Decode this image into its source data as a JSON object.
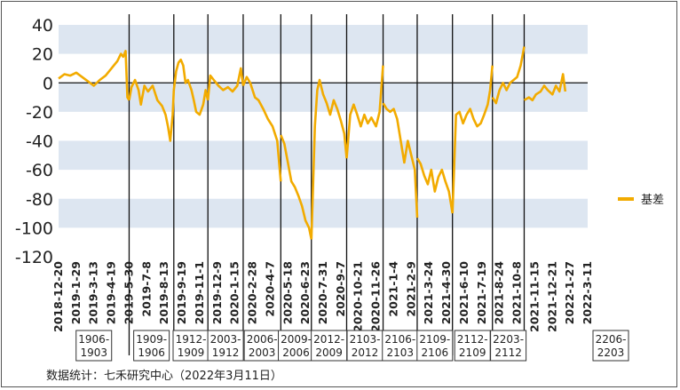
{
  "chart_data": {
    "type": "line",
    "title": "",
    "xlabel": "",
    "ylabel": "",
    "ylim": [
      -120,
      40
    ],
    "y_ticks": [
      40,
      20,
      0,
      -20,
      -40,
      -60,
      -80,
      -100,
      -120
    ],
    "band_color": "#dde6f1",
    "line_color": "#f2ab00",
    "x_tick_labels": [
      "2018-12-20",
      "2019-1-29",
      "2019-3-13",
      "2019-4-19",
      "2019-5-30",
      "2019-7-8",
      "2019-8-13",
      "2019-9-19",
      "2019-11-1",
      "2019-12-9",
      "2020-1-15",
      "2020-2-28",
      "2020-4-7",
      "2020-5-18",
      "2020-6-23",
      "2020-7-31",
      "2020-9-7",
      "2020-10-21",
      "2020-11-26",
      "2021-1-4",
      "2021-2-9",
      "2021-3-24",
      "2021-4-30",
      "2021-6-10",
      "2021-7-19",
      "2021-8-24",
      "2021-10-8",
      "2021-11-15",
      "2021-12-21",
      "2022-1-27",
      "2022-3-11"
    ],
    "contracts": [
      "1906-1903",
      "1909-1906",
      "1912-1909",
      "2003-1912",
      "2006-2003",
      "2009-2006",
      "2012-2009",
      "2103-2012",
      "2106-2103",
      "2109-2106",
      "2112-2109",
      "2203-2112",
      "2206-2203"
    ],
    "series": [
      {
        "name": "基差",
        "segments": [
          [
            [
              0,
              3
            ],
            [
              0.5,
              6
            ],
            [
              1,
              5
            ],
            [
              1.5,
              7
            ],
            [
              2,
              4
            ],
            [
              2.5,
              1
            ],
            [
              3,
              -2
            ],
            [
              3.5,
              2
            ],
            [
              4,
              5
            ],
            [
              4.5,
              10
            ],
            [
              5,
              15
            ],
            [
              5.3,
              20
            ],
            [
              5.5,
              18
            ],
            [
              5.7,
              22
            ],
            [
              5.85,
              -10
            ],
            [
              6,
              -12
            ]
          ],
          [
            [
              6,
              -12
            ],
            [
              6.2,
              -3
            ],
            [
              6.5,
              2
            ],
            [
              6.8,
              -5
            ],
            [
              7,
              -15
            ],
            [
              7.3,
              -2
            ],
            [
              7.6,
              -6
            ],
            [
              8,
              -2
            ],
            [
              8.4,
              -12
            ],
            [
              8.8,
              -16
            ],
            [
              9.1,
              -22
            ],
            [
              9.3,
              -30
            ],
            [
              9.5,
              -40
            ],
            [
              9.7,
              -22
            ],
            [
              9.8,
              -5
            ]
          ],
          [
            [
              9.8,
              -5
            ],
            [
              10,
              8
            ],
            [
              10.2,
              14
            ],
            [
              10.4,
              16
            ],
            [
              10.6,
              12
            ],
            [
              10.8,
              0
            ],
            [
              11,
              2
            ],
            [
              11.3,
              -5
            ],
            [
              11.5,
              -12
            ],
            [
              11.7,
              -20
            ],
            [
              12,
              -22
            ],
            [
              12.3,
              -15
            ],
            [
              12.5,
              -5
            ],
            [
              12.7,
              -12
            ]
          ],
          [
            [
              12.7,
              -12
            ],
            [
              12.9,
              5
            ],
            [
              13.2,
              2
            ],
            [
              13.6,
              -2
            ],
            [
              14,
              -5
            ],
            [
              14.4,
              -3
            ],
            [
              14.8,
              -6
            ],
            [
              15.2,
              -2
            ],
            [
              15.5,
              10
            ],
            [
              15.7,
              -2
            ]
          ],
          [
            [
              15.7,
              -2
            ],
            [
              16,
              4
            ],
            [
              16.3,
              0
            ],
            [
              16.7,
              -10
            ],
            [
              17,
              -12
            ],
            [
              17.4,
              -18
            ],
            [
              17.8,
              -25
            ],
            [
              18.2,
              -30
            ],
            [
              18.6,
              -40
            ],
            [
              18.9,
              -68
            ]
          ],
          [
            [
              18.9,
              -36
            ],
            [
              19.2,
              -42
            ],
            [
              19.5,
              -55
            ],
            [
              19.8,
              -68
            ],
            [
              20.1,
              -72
            ],
            [
              20.4,
              -78
            ],
            [
              20.7,
              -85
            ],
            [
              21,
              -95
            ],
            [
              21.3,
              -100
            ],
            [
              21.5,
              -108
            ]
          ],
          [
            [
              21.5,
              -108
            ],
            [
              21.8,
              -30
            ],
            [
              22,
              -5
            ],
            [
              22.2,
              2
            ],
            [
              22.5,
              -8
            ],
            [
              22.8,
              -14
            ],
            [
              23.1,
              -22
            ],
            [
              23.4,
              -12
            ],
            [
              23.7,
              -18
            ],
            [
              24,
              -26
            ],
            [
              24.3,
              -35
            ],
            [
              24.5,
              -52
            ]
          ],
          [
            [
              24.5,
              -52
            ],
            [
              24.8,
              -22
            ],
            [
              25.1,
              -15
            ],
            [
              25.4,
              -22
            ],
            [
              25.7,
              -30
            ],
            [
              26,
              -22
            ],
            [
              26.3,
              -28
            ],
            [
              26.6,
              -24
            ],
            [
              27,
              -30
            ],
            [
              27.3,
              -20
            ],
            [
              27.6,
              12
            ]
          ],
          [
            [
              27.6,
              -14
            ],
            [
              27.9,
              -18
            ],
            [
              28.2,
              -20
            ],
            [
              28.5,
              -18
            ],
            [
              28.8,
              -25
            ],
            [
              29.1,
              -40
            ],
            [
              29.4,
              -55
            ],
            [
              29.7,
              -40
            ],
            [
              30,
              -50
            ],
            [
              30.3,
              -60
            ],
            [
              30.5,
              -93
            ]
          ],
          [
            [
              30.5,
              -52
            ],
            [
              30.8,
              -56
            ],
            [
              31.1,
              -64
            ],
            [
              31.4,
              -70
            ],
            [
              31.7,
              -60
            ],
            [
              32,
              -75
            ],
            [
              32.3,
              -65
            ],
            [
              32.6,
              -60
            ],
            [
              32.9,
              -68
            ],
            [
              33.2,
              -75
            ],
            [
              33.5,
              -90
            ]
          ],
          [
            [
              33.5,
              -90
            ],
            [
              33.8,
              -22
            ],
            [
              34.1,
              -20
            ],
            [
              34.4,
              -28
            ],
            [
              34.7,
              -22
            ],
            [
              35,
              -18
            ],
            [
              35.3,
              -25
            ],
            [
              35.6,
              -30
            ],
            [
              35.9,
              -28
            ],
            [
              36.2,
              -22
            ],
            [
              36.5,
              -15
            ],
            [
              36.7,
              -5
            ],
            [
              36.9,
              12
            ]
          ],
          [
            [
              36.9,
              -10
            ],
            [
              37.2,
              -14
            ],
            [
              37.5,
              -5
            ],
            [
              37.8,
              0
            ],
            [
              38.1,
              -5
            ],
            [
              38.4,
              0
            ],
            [
              38.7,
              2
            ],
            [
              39,
              4
            ],
            [
              39.3,
              12
            ],
            [
              39.6,
              25
            ]
          ],
          [
            [
              39.6,
              -12
            ],
            [
              40,
              -10
            ],
            [
              40.3,
              -12
            ],
            [
              40.6,
              -8
            ],
            [
              41,
              -6
            ],
            [
              41.3,
              -2
            ],
            [
              41.6,
              -5
            ],
            [
              42,
              -8
            ],
            [
              42.3,
              -2
            ],
            [
              42.6,
              -6
            ],
            [
              42.9,
              6
            ],
            [
              43.1,
              -6
            ]
          ]
        ]
      }
    ]
  },
  "legend": {
    "label": "基差"
  },
  "source": "数据统计：七禾研究中心（2022年3月11日）"
}
